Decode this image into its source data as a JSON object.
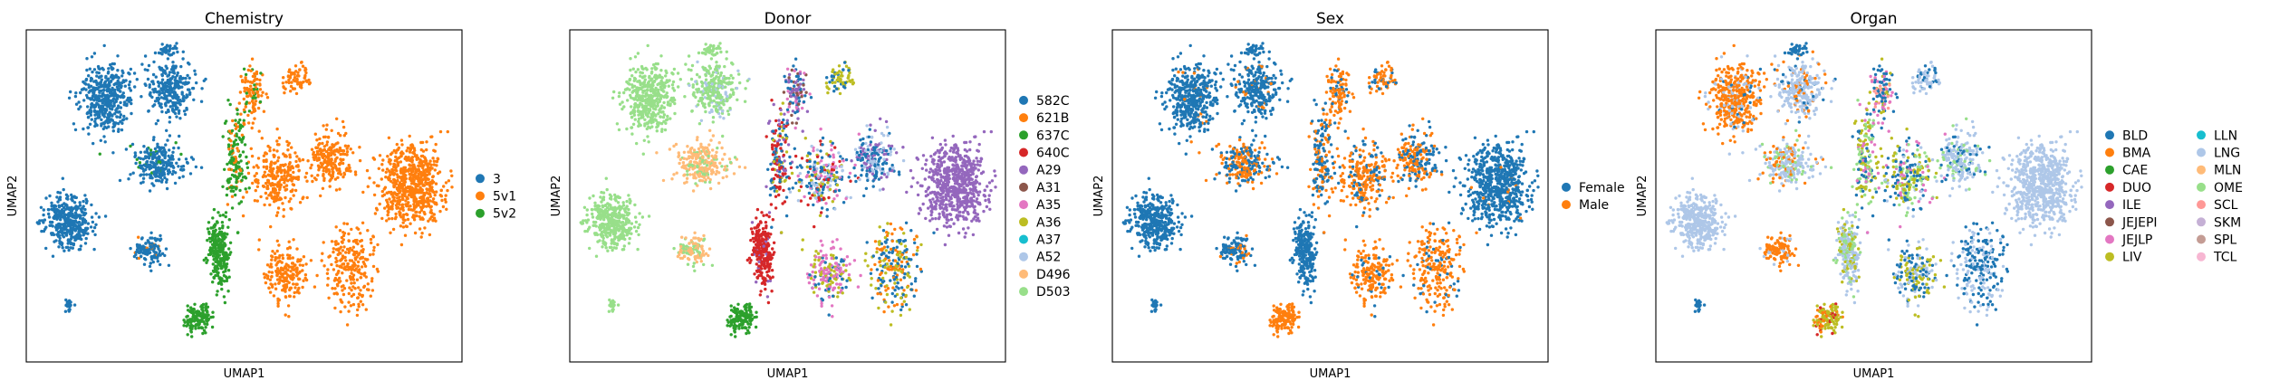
{
  "colors": {
    "tab10": [
      "#1f77b4",
      "#ff7f0e",
      "#2ca02c",
      "#d62728",
      "#9467bd",
      "#8c564b",
      "#e377c2",
      "#bcbd22",
      "#17becf",
      "#aec7e8",
      "#ffbb78",
      "#98df8a"
    ],
    "tab20_organ": [
      "#1f77b4",
      "#ff7f0e",
      "#2ca02c",
      "#d62728",
      "#9467bd",
      "#8c564b",
      "#e377c2",
      "#bcbd22",
      "#17becf",
      "#aec7e8",
      "#ffbb78",
      "#98df8a",
      "#ff9896",
      "#c5b0d5",
      "#c49c94",
      "#f7b6d2"
    ]
  },
  "chart_data": [
    {
      "type": "scatter",
      "title": "Chemistry",
      "xlabel": "UMAP1",
      "ylabel": "UMAP2",
      "grid": false,
      "ticks": "none",
      "legend_position": "right",
      "categories": [
        "3",
        "5v1",
        "5v2"
      ]
    },
    {
      "type": "scatter",
      "title": "Donor",
      "xlabel": "UMAP1",
      "ylabel": "UMAP2",
      "grid": false,
      "ticks": "none",
      "legend_position": "right",
      "categories": [
        "582C",
        "621B",
        "637C",
        "640C",
        "A29",
        "A31",
        "A35",
        "A36",
        "A37",
        "A52",
        "D496",
        "D503"
      ]
    },
    {
      "type": "scatter",
      "title": "Sex",
      "xlabel": "UMAP1",
      "ylabel": "UMAP2",
      "grid": false,
      "ticks": "none",
      "legend_position": "right",
      "categories": [
        "Female",
        "Male"
      ]
    },
    {
      "type": "scatter",
      "title": "Organ",
      "xlabel": "UMAP1",
      "ylabel": "UMAP2",
      "grid": false,
      "ticks": "none",
      "legend_position": "right",
      "legend_columns": 2,
      "categories": [
        "BLD",
        "BMA",
        "CAE",
        "DUO",
        "ILE",
        "JEJEPI",
        "JEJLP",
        "LIV",
        "LLN",
        "LNG",
        "MLN",
        "OME",
        "SCL",
        "SKM",
        "SPL",
        "TCL"
      ]
    }
  ]
}
